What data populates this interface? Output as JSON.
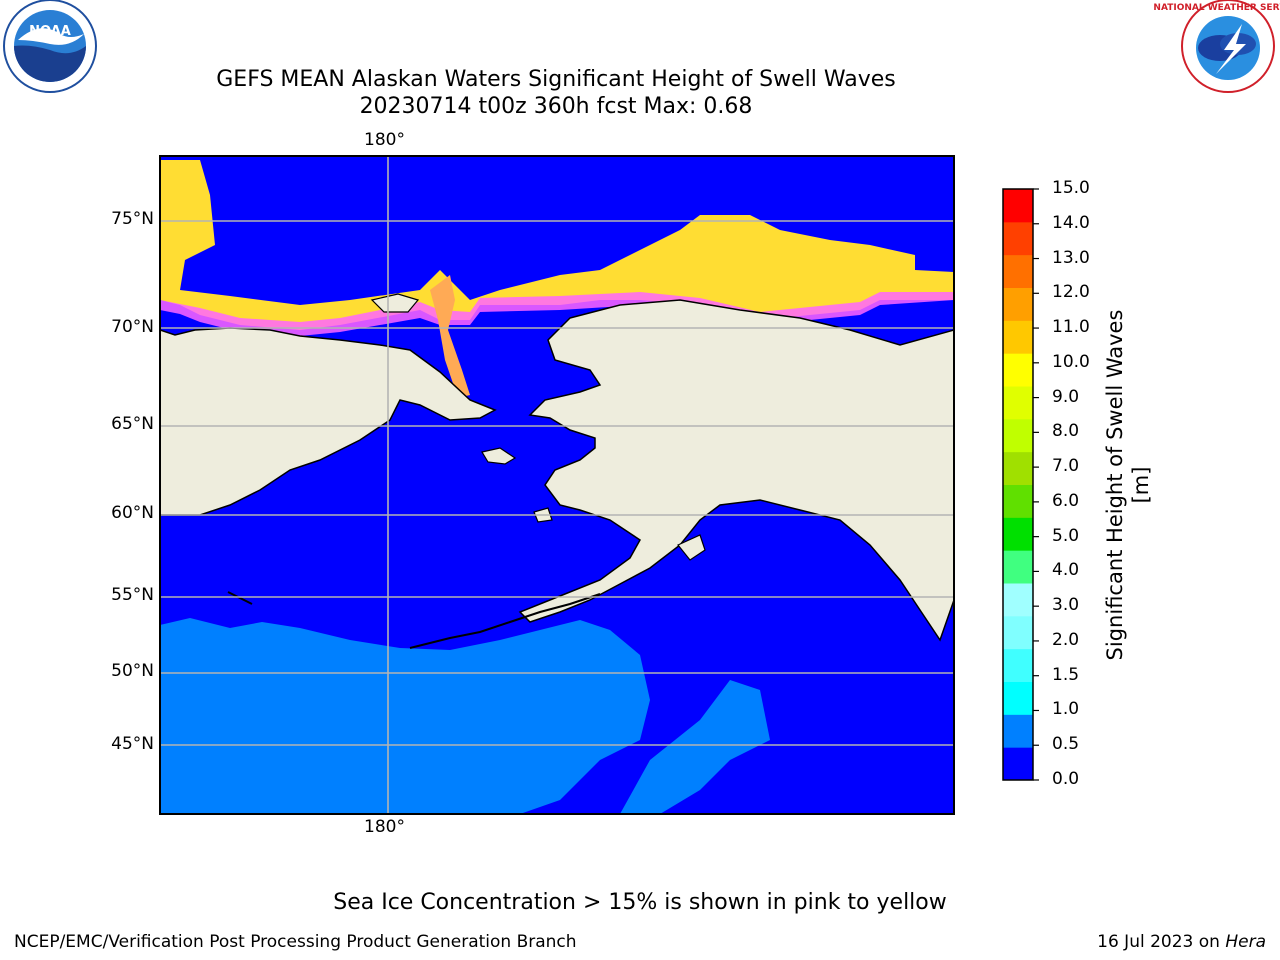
{
  "title": {
    "line1": "GEFS MEAN Alaskan Waters Significant Height of Swell Waves",
    "line2": "20230714 t00z 360h fcst   Max: 0.68"
  },
  "map": {
    "lat_labels": [
      "75°N",
      "70°N",
      "65°N",
      "60°N",
      "55°N",
      "50°N",
      "45°N"
    ],
    "lon_label_top": "180°",
    "lon_label_bottom": "180°",
    "colors": {
      "land": "#eeeddd",
      "swell_0_0_5": "#0000ff",
      "swell_0_5_1_0": "#0080ff",
      "ice_low": "#ff66ff",
      "ice_mid": "#ffaa55",
      "ice_high": "#ffdd33"
    }
  },
  "colorbar": {
    "title": "Significant Height of Swell Waves [m]",
    "ticks": [
      "15.0",
      "14.0",
      "13.0",
      "12.0",
      "11.0",
      "10.0",
      "9.0",
      "8.0",
      "7.0",
      "6.0",
      "5.0",
      "4.0",
      "3.0",
      "2.0",
      "1.5",
      "1.0",
      "0.5",
      "0.0"
    ],
    "bin_colors": [
      "#0000ff",
      "#0080ff",
      "#00ffff",
      "#40ffff",
      "#80ffff",
      "#a0ffff",
      "#40ff80",
      "#00e000",
      "#60e000",
      "#a0e000",
      "#c0ff00",
      "#e0ff00",
      "#ffff00",
      "#ffc800",
      "#ff9f00",
      "#ff7000",
      "#ff4000",
      "#ff0000"
    ]
  },
  "caption": "Sea Ice Concentration > 15% is shown in pink to yellow",
  "footer": {
    "left": "NCEP/EMC/Verification Post Processing Product Generation Branch",
    "right_prefix": "16 Jul 2023 on ",
    "right_host": "Hera"
  }
}
